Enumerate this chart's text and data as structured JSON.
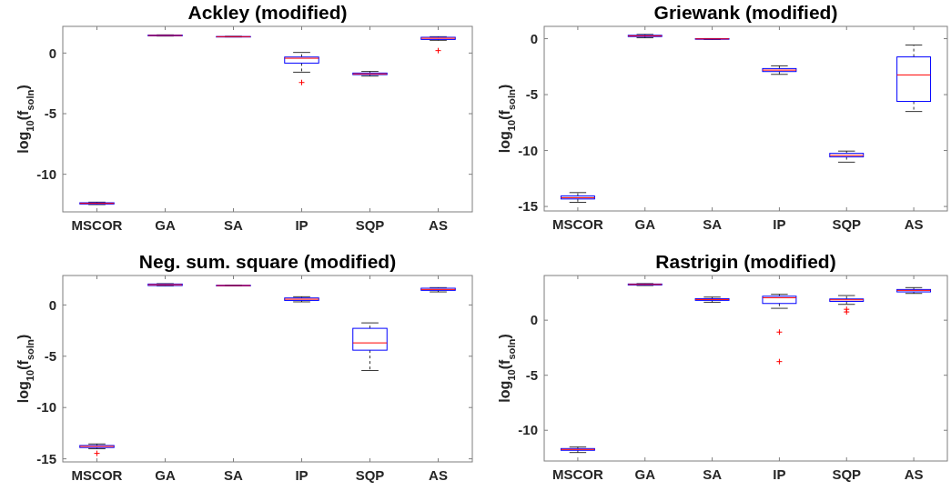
{
  "chart_data": [
    {
      "type": "box",
      "title": "Ackley (modified)",
      "ylabel": "log$_{10}$(f$_{soln}$)",
      "categories": [
        "MSCOR",
        "GA",
        "SA",
        "IP",
        "SQP",
        "AS"
      ],
      "ylim": [
        -13.1,
        2.2
      ],
      "yticks": [
        -10,
        -5,
        0
      ],
      "grid": false,
      "marker": "cross",
      "color": "#0000ff",
      "boxes": [
        {
          "low": -12.5,
          "q1": -12.45,
          "median": -12.4,
          "q3": -12.35,
          "high": -12.3
        },
        {
          "low": 1.4,
          "q1": 1.42,
          "median": 1.45,
          "q3": 1.48,
          "high": 1.5
        },
        {
          "low": 1.33,
          "q1": 1.34,
          "median": 1.35,
          "q3": 1.36,
          "high": 1.37
        },
        {
          "low": -1.58,
          "q1": -0.83,
          "median": -0.43,
          "q3": -0.33,
          "high": 0.05,
          "outliers": [
            -2.43
          ]
        },
        {
          "low": -1.9,
          "q1": -1.78,
          "median": -1.72,
          "q3": -1.65,
          "high": -1.52
        },
        {
          "low": 1.05,
          "q1": 1.12,
          "median": 1.22,
          "q3": 1.3,
          "high": 1.35,
          "outliers": [
            0.2
          ]
        }
      ]
    },
    {
      "type": "box",
      "title": "Griewank (modified)",
      "ylabel": "log$_{10}$(f$_{soln}$)",
      "categories": [
        "MSCOR",
        "GA",
        "SA",
        "IP",
        "SQP",
        "AS"
      ],
      "ylim": [
        -15.4,
        1.1
      ],
      "yticks": [
        -15,
        -10,
        -5,
        0
      ],
      "grid": false,
      "color": "#0000ff",
      "boxes": [
        {
          "low": -14.63,
          "q1": -14.33,
          "median": -14.22,
          "q3": -14.06,
          "high": -13.76
        },
        {
          "low": 0.08,
          "q1": 0.19,
          "median": 0.25,
          "q3": 0.3,
          "high": 0.38
        },
        {
          "low": -0.07,
          "q1": -0.05,
          "median": -0.02,
          "q3": 0,
          "high": 0.01
        },
        {
          "low": -3.19,
          "q1": -2.94,
          "median": -2.81,
          "q3": -2.67,
          "high": -2.43
        },
        {
          "low": -11.04,
          "q1": -10.57,
          "median": -10.44,
          "q3": -10.25,
          "high": -10.05
        },
        {
          "low": -6.51,
          "q1": -5.61,
          "median": -3.24,
          "q3": -1.63,
          "high": -0.57
        }
      ]
    },
    {
      "type": "box",
      "title": "Neg. sum. square (modified)",
      "ylabel": "log$_{10}$(f$_{soln}$)",
      "categories": [
        "MSCOR",
        "GA",
        "SA",
        "IP",
        "SQP",
        "AS"
      ],
      "ylim": [
        -15.3,
        2.87
      ],
      "yticks": [
        -15,
        -10,
        -5,
        0
      ],
      "grid": false,
      "marker": "cross",
      "color": "#0000ff",
      "boxes": [
        {
          "low": -14.02,
          "q1": -13.9,
          "median": -13.79,
          "q3": -13.7,
          "high": -13.55,
          "outliers": [
            -14.47
          ]
        },
        {
          "low": 1.86,
          "q1": 1.89,
          "median": 1.97,
          "q3": 2.04,
          "high": 2.07
        },
        {
          "low": 1.86,
          "q1": 1.87,
          "median": 1.89,
          "q3": 1.91,
          "high": 1.92
        },
        {
          "low": 0.3,
          "q1": 0.44,
          "median": 0.56,
          "q3": 0.68,
          "high": 0.8
        },
        {
          "low": -6.39,
          "q1": -4.41,
          "median": -3.7,
          "q3": -2.28,
          "high": -1.75
        },
        {
          "low": 1.27,
          "q1": 1.42,
          "median": 1.51,
          "q3": 1.63,
          "high": 1.69
        }
      ]
    },
    {
      "type": "box",
      "title": "Rastrigin (modified)",
      "ylabel": "log$_{10}$(f$_{soln}$)",
      "categories": [
        "MSCOR",
        "GA",
        "SA",
        "IP",
        "SQP",
        "AS"
      ],
      "ylim": [
        -12.79,
        4.06
      ],
      "yticks": [
        -10,
        -5,
        0
      ],
      "grid": false,
      "marker": "cross",
      "color": "#0000ff",
      "boxes": [
        {
          "low": -12.02,
          "q1": -11.82,
          "median": -11.74,
          "q3": -11.66,
          "high": -11.52
        },
        {
          "low": 3.15,
          "q1": 3.2,
          "median": 3.25,
          "q3": 3.29,
          "high": 3.32
        },
        {
          "low": 1.63,
          "q1": 1.8,
          "median": 1.88,
          "q3": 1.96,
          "high": 2.1
        },
        {
          "low": 1.08,
          "q1": 1.52,
          "median": 2.04,
          "q3": 2.18,
          "high": 2.35,
          "outliers": [
            -1.08,
            -3.76
          ]
        },
        {
          "low": 1.44,
          "q1": 1.71,
          "median": 1.85,
          "q3": 1.93,
          "high": 2.24,
          "outliers": [
            0.99,
            0.75
          ]
        },
        {
          "low": 2.43,
          "q1": 2.57,
          "median": 2.71,
          "q3": 2.79,
          "high": 2.96
        }
      ]
    }
  ]
}
